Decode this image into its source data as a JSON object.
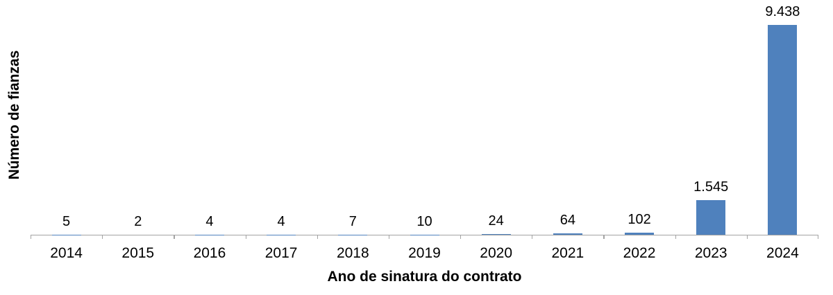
{
  "chart_data": {
    "type": "bar",
    "title": "",
    "xlabel": "Ano de sinatura do contrato",
    "ylabel": "Número de fianzas",
    "categories": [
      "2014",
      "2015",
      "2016",
      "2017",
      "2018",
      "2019",
      "2020",
      "2021",
      "2022",
      "2023",
      "2024"
    ],
    "values": [
      5,
      2,
      4,
      4,
      7,
      10,
      24,
      64,
      102,
      1545,
      9438
    ],
    "value_labels": [
      "5",
      "2",
      "4",
      "4",
      "7",
      "10",
      "24",
      "64",
      "102",
      "1.545",
      "9.438"
    ],
    "ylim": [
      0,
      9438
    ],
    "grid": false,
    "legend": false,
    "bar_color": "#4F81BD",
    "axis_color": "#a3a3a3",
    "text_color": "#000000"
  }
}
